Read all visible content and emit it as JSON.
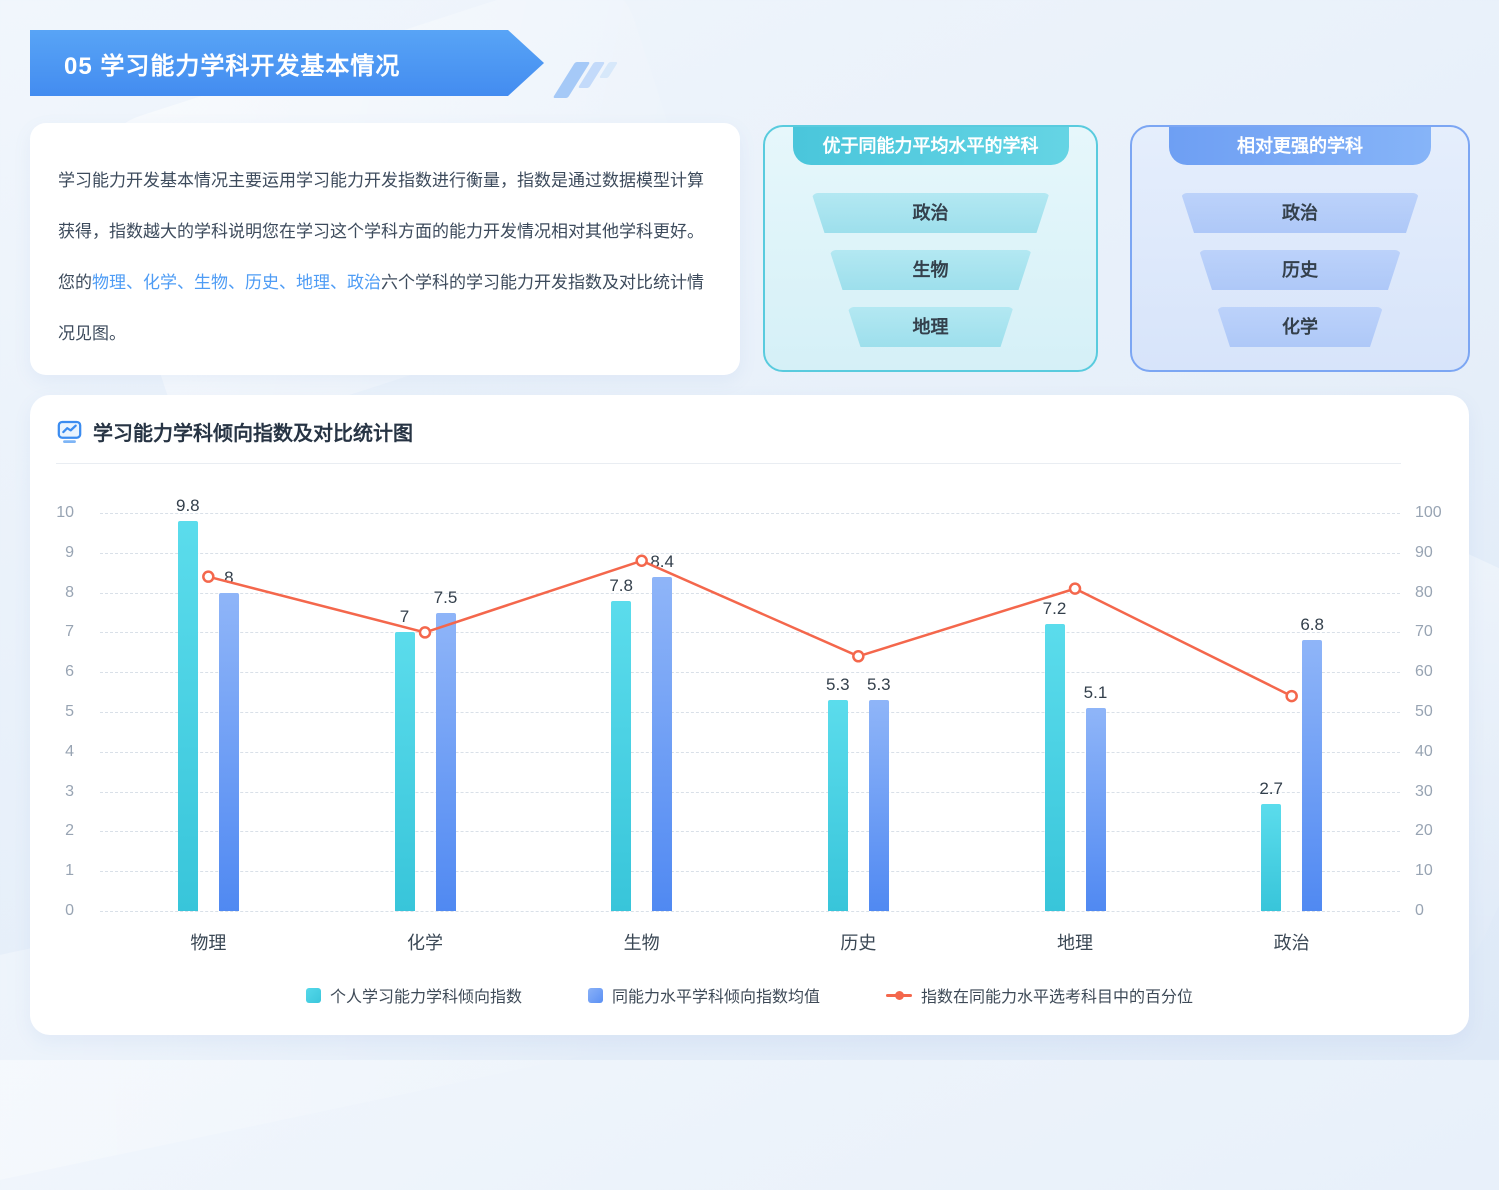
{
  "header": {
    "title": "05 学习能力学科开发基本情况"
  },
  "intro": {
    "before": "学习能力开发基本情况主要运用学习能力开发指数进行衡量，指数是通过数据模型计算获得，指数越大的学科说明您在学习这个学科方面的能力开发情况相对其他学科更好。您的",
    "subjects": "物理、化学、生物、历史、地理、政治",
    "after": "六个学科的学习能力开发指数及对比统计情况见图。"
  },
  "panels": [
    {
      "title": "优于同能力平均水平的学科",
      "theme_color": "#4EC8DC",
      "items": [
        "政治",
        "生物",
        "地理"
      ]
    },
    {
      "title": "相对更强的学科",
      "theme_color": "#79A7F4",
      "items": [
        "政治",
        "历史",
        "化学"
      ]
    }
  ],
  "chart_data": {
    "type": "bar",
    "title": "学习能力学科倾向指数及对比统计图",
    "categories": [
      "物理",
      "化学",
      "生物",
      "历史",
      "地理",
      "政治"
    ],
    "series": [
      {
        "name": "个人学习能力学科倾向指数",
        "kind": "bar",
        "axis": "left",
        "color": "#40CBDE",
        "values": [
          9.8,
          7,
          7.8,
          5.3,
          7.2,
          2.7
        ]
      },
      {
        "name": "同能力水平学科倾向指数均值",
        "kind": "bar",
        "axis": "left",
        "color": "#5B90F4",
        "values": [
          8,
          7.5,
          8.4,
          5.3,
          5.1,
          6.8
        ]
      },
      {
        "name": "指数在同能力水平选考科目中的百分位",
        "kind": "line",
        "axis": "right",
        "color": "#F4674C",
        "values": [
          84,
          70,
          88,
          64,
          81,
          54
        ]
      }
    ],
    "left_axis": {
      "min": 0,
      "max": 10,
      "step": 1
    },
    "right_axis": {
      "min": 0,
      "max": 100,
      "step": 10
    },
    "grid": "horizontal-dashed",
    "legend_position": "bottom"
  }
}
